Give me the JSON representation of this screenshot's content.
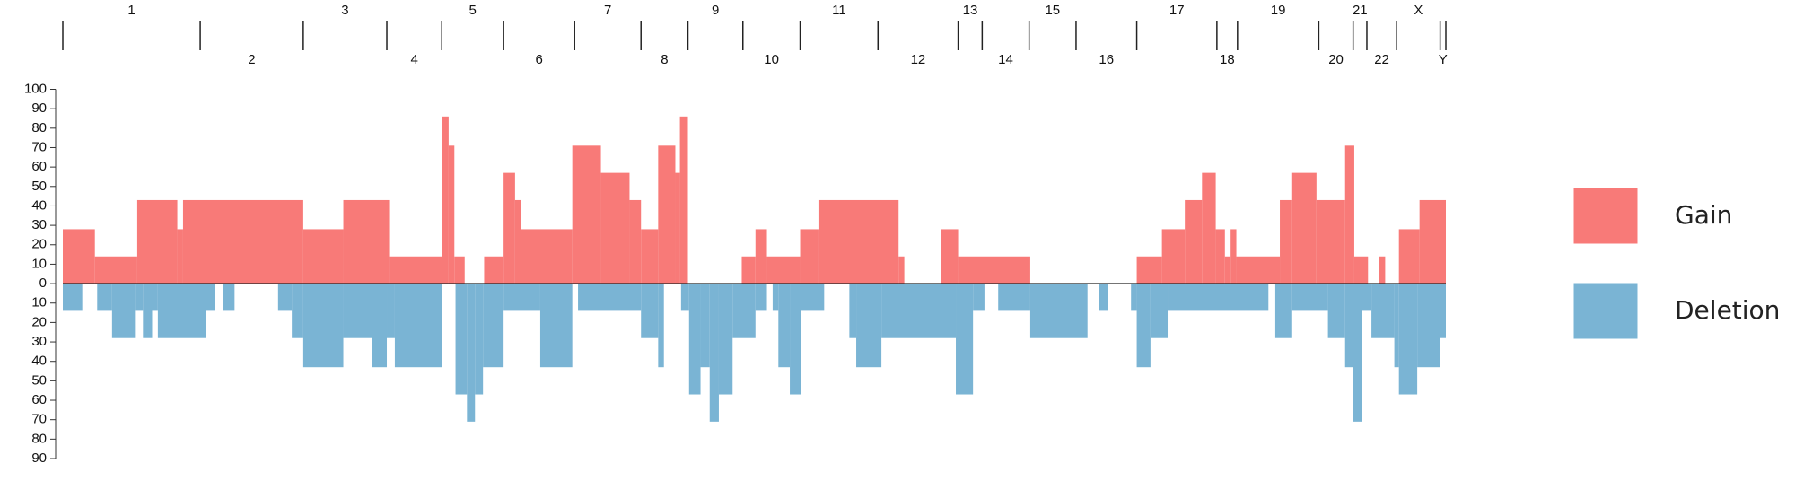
{
  "chart_data": {
    "type": "step-area",
    "xlim": [
      55,
      1263
    ],
    "ylim": [
      -90,
      100
    ],
    "yticks": [
      100,
      90,
      80,
      70,
      60,
      50,
      40,
      30,
      20,
      10,
      0,
      {
        "value": -10,
        "label": "10"
      },
      {
        "value": -20,
        "label": "20"
      },
      {
        "value": -30,
        "label": "30"
      },
      {
        "value": -40,
        "label": "40"
      },
      {
        "value": -50,
        "label": "50"
      },
      {
        "value": -60,
        "label": "60"
      },
      {
        "value": -70,
        "label": "70"
      },
      {
        "value": -80,
        "label": "80"
      },
      {
        "value": -90,
        "label": "90"
      }
    ],
    "chromosomes": [
      "1",
      "2",
      "3",
      "4",
      "5",
      "6",
      "7",
      "8",
      "9",
      "10",
      "11",
      "12",
      "13",
      "14",
      "15",
      "16",
      "17",
      "18",
      "19",
      "20",
      "21",
      "22",
      "X",
      "Y"
    ],
    "chromosome_bounds": [
      55,
      175,
      265,
      338,
      386,
      440,
      502,
      560,
      601,
      649,
      699,
      767,
      837,
      858,
      899,
      940,
      993,
      1063,
      1081,
      1152,
      1182,
      1194,
      1220,
      1258,
      1263
    ],
    "series": [
      {
        "name": "Gain",
        "color": "#f87a78",
        "x": [
          55,
          83,
          120,
          155,
          160,
          265,
          300,
          340,
          386,
          392,
          397,
          406,
          423,
          440,
          450,
          455,
          500,
          525,
          550,
          560,
          575,
          590,
          594,
          601,
          648,
          660,
          670,
          699,
          715,
          785,
          790,
          822,
          837,
          900,
          993,
          1015,
          1035,
          1050,
          1062,
          1070,
          1075,
          1080,
          1118,
          1128,
          1150,
          1175,
          1183,
          1195,
          1205,
          1210,
          1222,
          1240
        ],
        "values": [
          28,
          14,
          43,
          28,
          43,
          28,
          43,
          14,
          86,
          71,
          14,
          0,
          14,
          57,
          43,
          28,
          71,
          57,
          43,
          28,
          71,
          57,
          86,
          0,
          14,
          28,
          14,
          28,
          43,
          14,
          0,
          28,
          14,
          0,
          14,
          28,
          43,
          57,
          28,
          14,
          28,
          14,
          43,
          57,
          43,
          71,
          14,
          0,
          14,
          0,
          28,
          43
        ]
      },
      {
        "name": "Deletion",
        "color": "#7ab4d4",
        "x": [
          55,
          72,
          85,
          98,
          118,
          125,
          133,
          138,
          180,
          188,
          195,
          205,
          243,
          255,
          265,
          300,
          325,
          338,
          345,
          386,
          398,
          408,
          415,
          422,
          440,
          472,
          500,
          505,
          560,
          575,
          580,
          595,
          602,
          612,
          620,
          628,
          640,
          660,
          670,
          675,
          680,
          690,
          700,
          720,
          742,
          748,
          770,
          835,
          850,
          860,
          872,
          900,
          950,
          960,
          968,
          988,
          993,
          1005,
          1020,
          1108,
          1114,
          1128,
          1160,
          1175,
          1182,
          1190,
          1198,
          1218,
          1222,
          1238,
          1258
        ],
        "values": [
          -14,
          0,
          -14,
          -28,
          -14,
          -28,
          -14,
          -28,
          -14,
          0,
          -14,
          0,
          -14,
          -28,
          -43,
          -28,
          -43,
          -28,
          -43,
          0,
          -57,
          -71,
          -57,
          -43,
          -14,
          -43,
          0,
          -14,
          -28,
          -43,
          0,
          -14,
          -57,
          -43,
          -71,
          -57,
          -28,
          -14,
          0,
          -14,
          -43,
          -57,
          -14,
          0,
          -28,
          -43,
          -28,
          -57,
          -14,
          0,
          -14,
          -28,
          0,
          -14,
          0,
          -14,
          -43,
          -28,
          -14,
          0,
          -28,
          -14,
          -28,
          -43,
          -71,
          -14,
          -28,
          -43,
          -57,
          -43,
          -28
        ]
      }
    ]
  }
}
